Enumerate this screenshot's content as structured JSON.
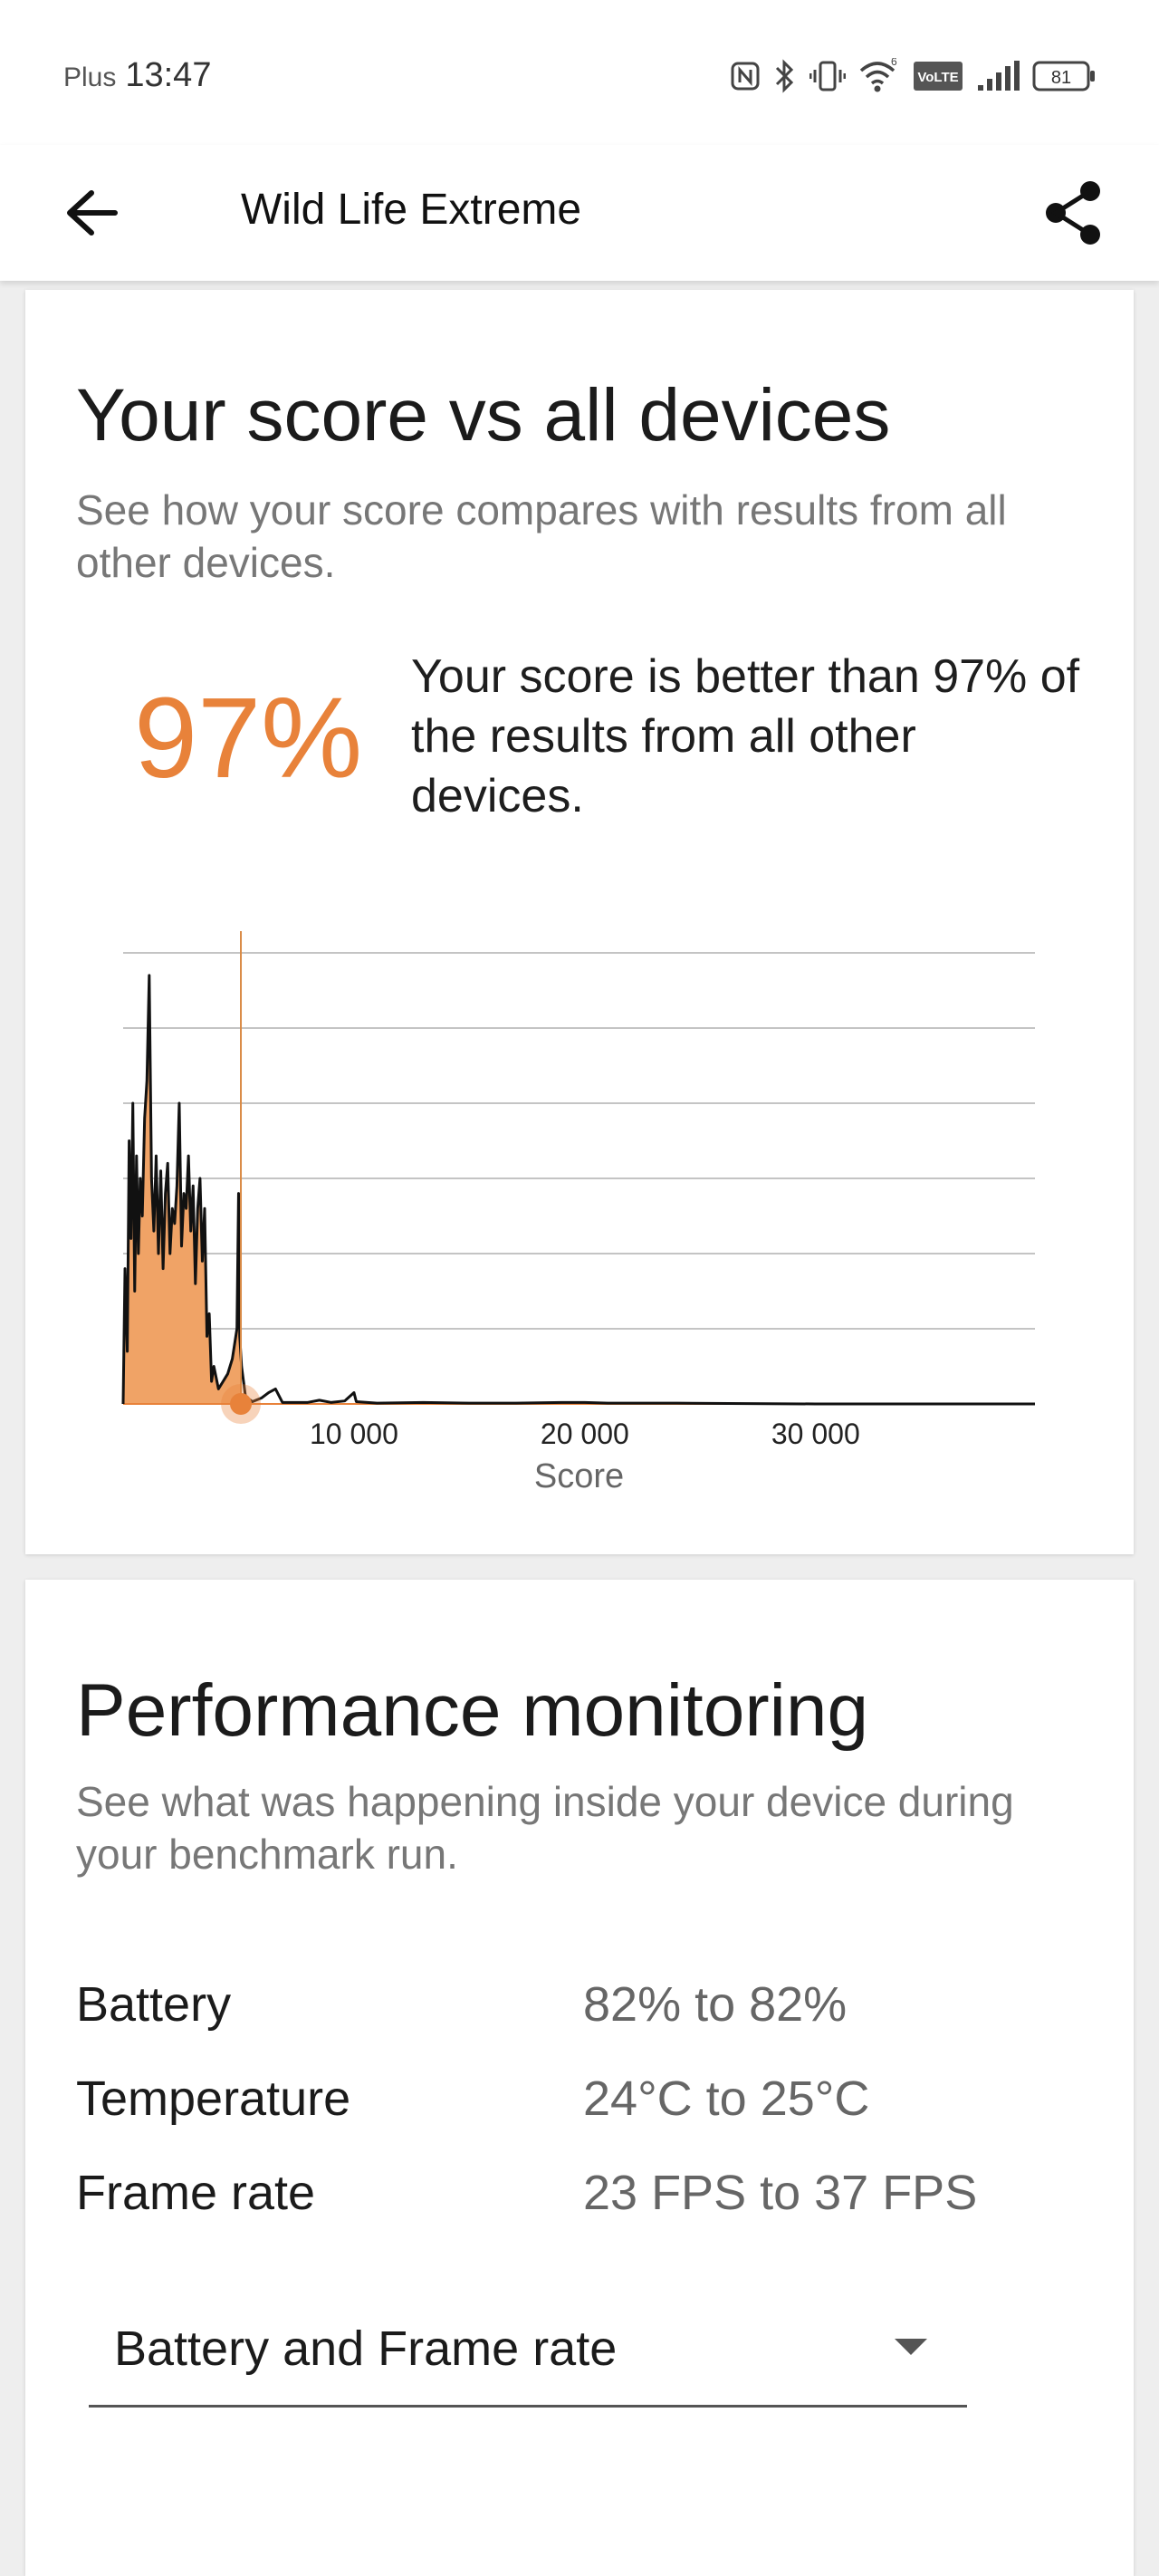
{
  "status_bar": {
    "carrier": "Plus",
    "time": "13:47",
    "network_label": "VoLTE",
    "battery_level": "81"
  },
  "app_bar": {
    "title": "Wild Life Extreme"
  },
  "score_card": {
    "title": "Your score vs all devices",
    "subtitle": "See how your score compares with results from all other devices.",
    "percentile": "97%",
    "description": "Your score is better than 97% of the results from all other devices.",
    "accent_color": "#e8823a"
  },
  "chart_data": {
    "type": "area",
    "xlabel": "Score",
    "ylabel": "",
    "xlim": [
      0,
      39500
    ],
    "ylim": [
      0,
      6
    ],
    "grid": true,
    "x_ticks": [
      {
        "value": 10000,
        "label": "10 000"
      },
      {
        "value": 20000,
        "label": "20 000"
      },
      {
        "value": 30000,
        "label": "30 000"
      }
    ],
    "your_score_marker": 5100,
    "series": [
      {
        "values": [
          [
            0,
            0
          ],
          [
            80,
            1.8
          ],
          [
            180,
            0.7
          ],
          [
            260,
            3.5
          ],
          [
            340,
            2.2
          ],
          [
            420,
            4.0
          ],
          [
            500,
            1.5
          ],
          [
            580,
            3.3
          ],
          [
            660,
            2.0
          ],
          [
            740,
            3.0
          ],
          [
            830,
            2.5
          ],
          [
            930,
            3.8
          ],
          [
            1030,
            4.3
          ],
          [
            1130,
            5.7
          ],
          [
            1230,
            3.0
          ],
          [
            1330,
            2.3
          ],
          [
            1430,
            3.3
          ],
          [
            1530,
            2.0
          ],
          [
            1630,
            3.1
          ],
          [
            1730,
            1.8
          ],
          [
            1830,
            2.8
          ],
          [
            1930,
            3.2
          ],
          [
            2030,
            2.0
          ],
          [
            2130,
            2.6
          ],
          [
            2230,
            2.4
          ],
          [
            2330,
            2.9
          ],
          [
            2430,
            4.0
          ],
          [
            2530,
            2.1
          ],
          [
            2630,
            2.8
          ],
          [
            2730,
            2.6
          ],
          [
            2830,
            3.3
          ],
          [
            2930,
            2.3
          ],
          [
            3030,
            2.9
          ],
          [
            3130,
            1.6
          ],
          [
            3230,
            2.6
          ],
          [
            3330,
            3.0
          ],
          [
            3430,
            1.9
          ],
          [
            3530,
            2.6
          ],
          [
            3630,
            0.9
          ],
          [
            3730,
            1.2
          ],
          [
            3830,
            0.3
          ],
          [
            3930,
            0.5
          ],
          [
            4030,
            0.35
          ],
          [
            4130,
            0.2
          ],
          [
            4230,
            0.25
          ],
          [
            4330,
            0.3
          ],
          [
            4430,
            0.35
          ],
          [
            4530,
            0.4
          ],
          [
            4630,
            0.5
          ],
          [
            4730,
            0.6
          ],
          [
            4830,
            0.8
          ],
          [
            4930,
            1.0
          ],
          [
            5000,
            2.8
          ],
          [
            5050,
            0.9
          ],
          [
            5130,
            0.5
          ],
          [
            5300,
            0.1
          ],
          [
            5600,
            0.03
          ],
          [
            6000,
            0.08
          ],
          [
            6300,
            0.15
          ],
          [
            6600,
            0.2
          ],
          [
            6900,
            0.02
          ],
          [
            8000,
            0.02
          ],
          [
            8500,
            0.05
          ],
          [
            9000,
            0.02
          ],
          [
            9600,
            0.04
          ],
          [
            10000,
            0.15
          ],
          [
            10100,
            0.03
          ],
          [
            11000,
            0.01
          ],
          [
            13000,
            0.02
          ],
          [
            15000,
            0.01
          ],
          [
            17000,
            0.01
          ],
          [
            19000,
            0.02
          ],
          [
            20000,
            0.02
          ],
          [
            21000,
            0.01
          ],
          [
            24000,
            0.01
          ],
          [
            30000,
            0.0
          ],
          [
            39500,
            0.0
          ]
        ]
      }
    ]
  },
  "perf_card": {
    "title": "Performance monitoring",
    "subtitle": "See what was happening inside your device during your benchmark run.",
    "metrics": [
      {
        "label": "Battery",
        "value": "82% to 82%"
      },
      {
        "label": "Temperature",
        "value": "24°C to 25°C"
      },
      {
        "label": "Frame rate",
        "value": "23 FPS to 37 FPS"
      }
    ],
    "dropdown_value": "Battery and Frame rate"
  }
}
